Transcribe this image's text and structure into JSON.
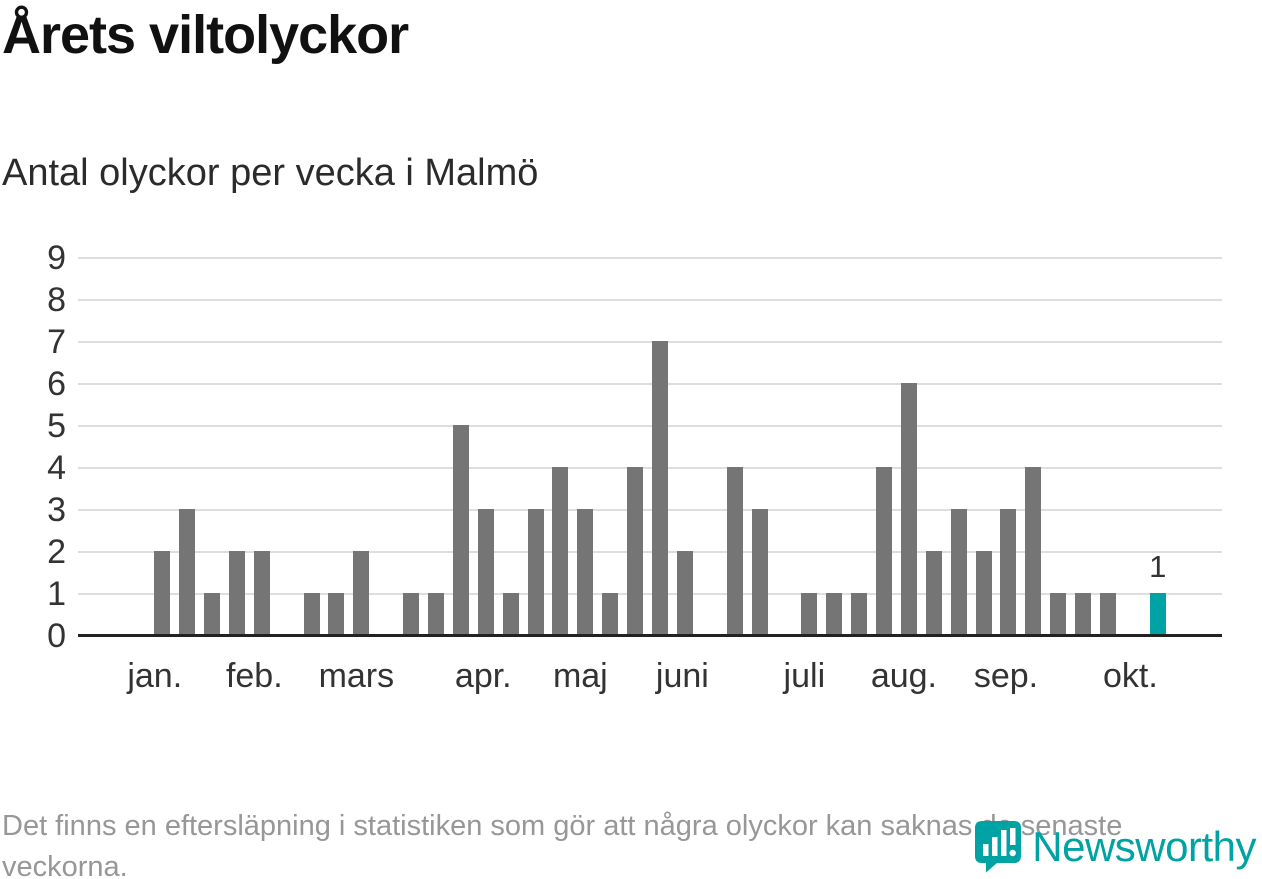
{
  "header": {
    "title": "Årets viltolyckor",
    "subtitle": "Antal olyckor per vecka i Malmö"
  },
  "chart_data": {
    "type": "bar",
    "title": "Årets viltolyckor",
    "subtitle": "Antal olyckor per vecka i Malmö",
    "xlabel": "",
    "ylabel": "",
    "ylim": [
      0,
      9
    ],
    "y_ticks": [
      0,
      1,
      2,
      3,
      4,
      5,
      6,
      7,
      8,
      9
    ],
    "grid": true,
    "legend": "none",
    "x_unit": "vecka",
    "values": [
      0,
      0,
      2,
      3,
      1,
      2,
      2,
      0,
      1,
      1,
      2,
      0,
      1,
      1,
      5,
      3,
      1,
      3,
      4,
      3,
      1,
      4,
      7,
      2,
      0,
      4,
      3,
      0,
      1,
      1,
      1,
      4,
      6,
      2,
      3,
      2,
      3,
      4,
      1,
      1,
      1,
      0,
      1,
      0,
      0
    ],
    "highlight_index": 42,
    "highlight_value_label": "1",
    "bar_color": "#757575",
    "highlight_color": "#00A3A3",
    "grid_color": "#dedede",
    "axis_color": "#222222",
    "month_ticks": [
      {
        "label": "jan.",
        "index": 1.7
      },
      {
        "label": "feb.",
        "index": 5.7
      },
      {
        "label": "mars",
        "index": 9.8
      },
      {
        "label": "apr.",
        "index": 14.9
      },
      {
        "label": "maj",
        "index": 18.8
      },
      {
        "label": "juni",
        "index": 22.9
      },
      {
        "label": "juli",
        "index": 27.8
      },
      {
        "label": "aug.",
        "index": 31.8
      },
      {
        "label": "sep.",
        "index": 35.9
      },
      {
        "label": "okt.",
        "index": 40.9
      }
    ]
  },
  "footer": {
    "note": "Det finns en eftersläpning i statistiken som gör att några olyckor kan saknas de senaste veckorna."
  },
  "logo": {
    "name": "Newsworthy",
    "color": "#00A3A3"
  }
}
